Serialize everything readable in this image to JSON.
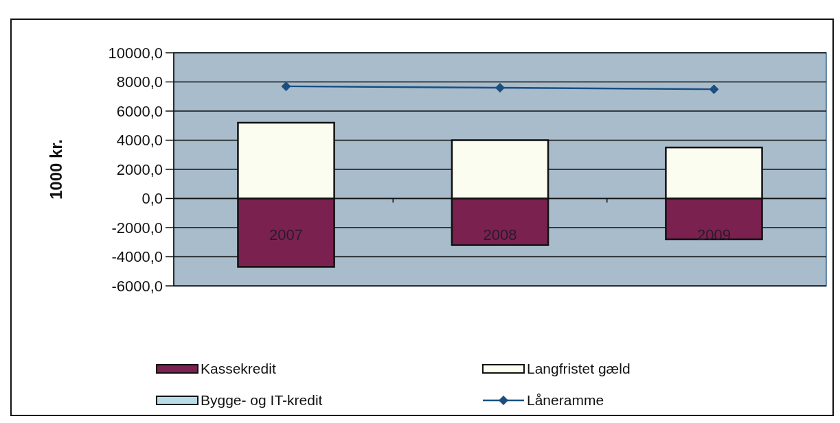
{
  "chart_data": {
    "type": "bar",
    "stacked": true,
    "ylabel": "1000 kr.",
    "categories": [
      "2007",
      "2008",
      "2009"
    ],
    "series": [
      {
        "name": "Kassekredit",
        "color": "#7a2150",
        "values": [
          -4700,
          -3200,
          -2800
        ]
      },
      {
        "name": "Langfristet gæld",
        "color": "#fafdf0",
        "values": [
          5200,
          4000,
          3500
        ]
      },
      {
        "name": "Bygge- og IT-kredit",
        "color": "#b8dce6",
        "values": [
          0,
          0,
          0
        ]
      },
      {
        "name": "Låneramme",
        "type": "line",
        "color": "#1a4f80",
        "marker": "diamond",
        "values": [
          7700,
          7600,
          7500
        ]
      }
    ],
    "ylim": [
      -6000,
      10000
    ],
    "yticks": [
      {
        "value": -6000,
        "label": "-6000,0"
      },
      {
        "value": -4000,
        "label": "-4000,0"
      },
      {
        "value": -2000,
        "label": "-2000,0"
      },
      {
        "value": 0,
        "label": "0,0"
      },
      {
        "value": 2000,
        "label": "2000,0"
      },
      {
        "value": 4000,
        "label": "4000,0"
      },
      {
        "value": 6000,
        "label": "6000,0"
      },
      {
        "value": 8000,
        "label": "8000,0"
      },
      {
        "value": 10000,
        "label": "10000,0"
      }
    ],
    "grid": "y",
    "legend": "bottom"
  }
}
